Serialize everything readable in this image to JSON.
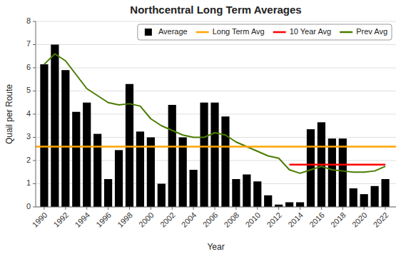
{
  "chart_data": {
    "type": "bar",
    "title": "Northcentral Long Term Averages",
    "x_label": "Year",
    "y_label": "Quail per Route",
    "x": [
      1990,
      1991,
      1992,
      1993,
      1994,
      1995,
      1996,
      1997,
      1998,
      1999,
      2000,
      2001,
      2002,
      2003,
      2004,
      2005,
      2006,
      2007,
      2008,
      2009,
      2010,
      2011,
      2012,
      2013,
      2014,
      2015,
      2016,
      2017,
      2018,
      2019,
      2020,
      2021,
      2022
    ],
    "series": [
      {
        "name": "Average",
        "type": "bar",
        "color": "#000000",
        "values": [
          6.15,
          7.0,
          5.9,
          4.1,
          4.5,
          3.15,
          1.2,
          2.45,
          5.3,
          3.25,
          3.0,
          1.0,
          4.4,
          3.0,
          1.6,
          4.5,
          4.5,
          3.9,
          1.2,
          1.4,
          1.1,
          0.5,
          0.1,
          0.2,
          0.2,
          3.35,
          3.65,
          2.95,
          2.95,
          0.8,
          0.55,
          0.9,
          1.2
        ]
      },
      {
        "name": "Long Term Avg",
        "type": "hline",
        "color": "#FFA500",
        "value": 2.6
      },
      {
        "name": "10 Year Avg",
        "type": "hline",
        "color": "#FF0000",
        "value": 1.82,
        "x": [
          2013,
          2022
        ]
      },
      {
        "name": "Prev Avg",
        "type": "line",
        "color": "#4a7c00",
        "values": [
          6.15,
          6.6,
          6.3,
          5.7,
          5.1,
          4.8,
          4.5,
          4.4,
          4.45,
          4.35,
          3.8,
          3.5,
          3.3,
          3.1,
          3.0,
          3.0,
          3.2,
          3.1,
          2.8,
          2.6,
          2.4,
          2.2,
          2.1,
          1.6,
          1.45,
          1.6,
          1.75,
          1.6,
          1.55,
          1.5,
          1.5,
          1.55,
          1.75
        ]
      }
    ],
    "xlim": [
      1989.2,
      2023.0
    ],
    "xticks": [
      1990,
      1992,
      1994,
      1996,
      1998,
      2000,
      2002,
      2004,
      2006,
      2008,
      2010,
      2012,
      2014,
      2016,
      2018,
      2020,
      2022
    ],
    "ylim": [
      0,
      8
    ],
    "yticks": [
      0,
      1,
      2,
      3,
      4,
      5,
      6,
      7,
      8
    ],
    "grid": true,
    "legend": "upper right"
  }
}
